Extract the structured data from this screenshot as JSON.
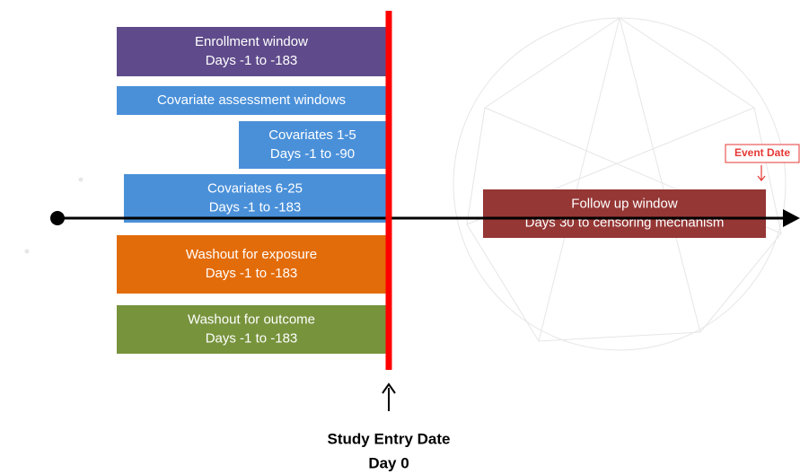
{
  "boxes": [
    {
      "lines": [
        "Enrollment window",
        "Days -1 to -183"
      ]
    },
    {
      "lines": [
        "Covariate assessment windows"
      ]
    },
    {
      "lines": [
        "Covariates 1-5",
        "Days -1 to -90"
      ]
    },
    {
      "lines": [
        "Covariates 6-25",
        "Days -1 to -183"
      ]
    },
    {
      "lines": [
        "Washout for exposure",
        "Days -1 to -183"
      ]
    },
    {
      "lines": [
        "Washout for outcome",
        "Days -1 to -183"
      ]
    },
    {
      "lines": [
        "Follow up window",
        "Days 30 to censoring mechanism"
      ]
    }
  ],
  "event_label": "Event Date",
  "entry_label": {
    "lines": [
      "Study Entry Date",
      "Day 0"
    ]
  }
}
